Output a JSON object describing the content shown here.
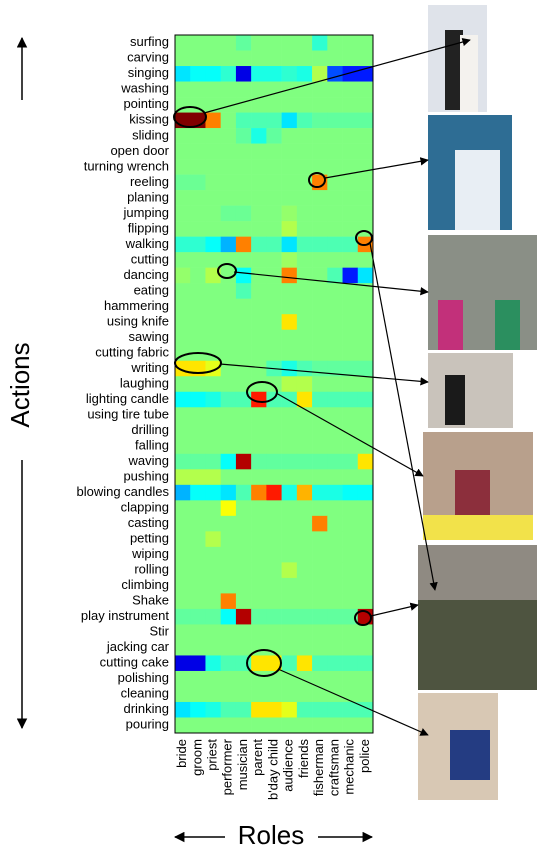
{
  "chart_data": {
    "type": "heatmap",
    "xlabel": "Roles",
    "ylabel": "Actions",
    "x_categories": [
      "bride",
      "groom",
      "priest",
      "performer",
      "musician",
      "parent",
      "b'day child",
      "audience",
      "friends",
      "fisherman",
      "craftsman",
      "mechanic",
      "police"
    ],
    "y_categories": [
      "surfing",
      "carving",
      "singing",
      "washing",
      "pointing",
      "kissing",
      "sliding",
      "open door",
      "turning wrench",
      "reeling",
      "planing",
      "jumping",
      "flipping",
      "walking",
      "cutting",
      "dancing",
      "eating",
      "hammering",
      "using knife",
      "sawing",
      "cutting fabric",
      "writing",
      "laughing",
      "lighting candle",
      "using tire tube",
      "drilling",
      "falling",
      "waving",
      "pushing",
      "blowing candles",
      "clapping",
      "casting",
      "petting",
      "wiping",
      "rolling",
      "climbing",
      "Shake",
      "play instrument",
      "Stir",
      "jacking car",
      "cutting cake",
      "polishing",
      "cleaning",
      "drinking",
      "pouring"
    ],
    "zlim": [
      0,
      1
    ],
    "colormap": "jet",
    "values": [
      [
        0.5,
        0.5,
        0.5,
        0.5,
        0.47,
        0.5,
        0.5,
        0.5,
        0.5,
        0.42,
        0.5,
        0.5,
        0.5
      ],
      [
        0.5,
        0.5,
        0.5,
        0.5,
        0.5,
        0.5,
        0.5,
        0.5,
        0.5,
        0.5,
        0.5,
        0.5,
        0.5
      ],
      [
        0.35,
        0.38,
        0.38,
        0.42,
        0.1,
        0.4,
        0.4,
        0.42,
        0.4,
        0.55,
        0.2,
        0.15,
        0.15
      ],
      [
        0.5,
        0.5,
        0.5,
        0.5,
        0.5,
        0.5,
        0.5,
        0.5,
        0.5,
        0.5,
        0.5,
        0.5,
        0.5
      ],
      [
        0.5,
        0.5,
        0.5,
        0.5,
        0.5,
        0.5,
        0.5,
        0.5,
        0.5,
        0.5,
        0.5,
        0.5,
        0.5
      ],
      [
        1.0,
        1.0,
        0.75,
        0.5,
        0.45,
        0.45,
        0.45,
        0.35,
        0.45,
        0.47,
        0.47,
        0.47,
        0.47
      ],
      [
        0.5,
        0.5,
        0.5,
        0.5,
        0.47,
        0.4,
        0.47,
        0.5,
        0.5,
        0.5,
        0.5,
        0.5,
        0.5
      ],
      [
        0.5,
        0.5,
        0.5,
        0.5,
        0.5,
        0.5,
        0.5,
        0.5,
        0.5,
        0.5,
        0.5,
        0.5,
        0.5
      ],
      [
        0.5,
        0.5,
        0.5,
        0.5,
        0.5,
        0.5,
        0.5,
        0.5,
        0.5,
        0.5,
        0.5,
        0.5,
        0.5
      ],
      [
        0.48,
        0.48,
        0.5,
        0.5,
        0.5,
        0.5,
        0.5,
        0.5,
        0.5,
        0.75,
        0.5,
        0.5,
        0.5
      ],
      [
        0.5,
        0.5,
        0.5,
        0.5,
        0.5,
        0.5,
        0.5,
        0.5,
        0.5,
        0.5,
        0.5,
        0.5,
        0.5
      ],
      [
        0.5,
        0.5,
        0.5,
        0.48,
        0.48,
        0.5,
        0.5,
        0.52,
        0.5,
        0.5,
        0.5,
        0.5,
        0.5
      ],
      [
        0.5,
        0.5,
        0.5,
        0.5,
        0.5,
        0.5,
        0.5,
        0.55,
        0.5,
        0.5,
        0.5,
        0.5,
        0.5
      ],
      [
        0.42,
        0.42,
        0.38,
        0.3,
        0.75,
        0.45,
        0.45,
        0.35,
        0.45,
        0.45,
        0.45,
        0.45,
        0.75
      ],
      [
        0.5,
        0.5,
        0.5,
        0.5,
        0.5,
        0.5,
        0.5,
        0.53,
        0.5,
        0.5,
        0.5,
        0.5,
        0.5
      ],
      [
        0.52,
        0.5,
        0.55,
        0.5,
        0.38,
        0.5,
        0.5,
        0.75,
        0.5,
        0.5,
        0.45,
        0.15,
        0.35
      ],
      [
        0.5,
        0.5,
        0.5,
        0.5,
        0.45,
        0.5,
        0.5,
        0.5,
        0.5,
        0.5,
        0.5,
        0.5,
        0.5
      ],
      [
        0.5,
        0.5,
        0.5,
        0.5,
        0.5,
        0.5,
        0.5,
        0.5,
        0.5,
        0.5,
        0.5,
        0.5,
        0.5
      ],
      [
        0.5,
        0.5,
        0.5,
        0.5,
        0.5,
        0.5,
        0.5,
        0.65,
        0.5,
        0.5,
        0.5,
        0.5,
        0.5
      ],
      [
        0.5,
        0.5,
        0.5,
        0.5,
        0.5,
        0.5,
        0.5,
        0.5,
        0.5,
        0.5,
        0.5,
        0.5,
        0.5
      ],
      [
        0.5,
        0.5,
        0.5,
        0.5,
        0.5,
        0.5,
        0.5,
        0.5,
        0.5,
        0.5,
        0.5,
        0.5,
        0.5
      ],
      [
        0.65,
        0.65,
        0.6,
        0.5,
        0.5,
        0.5,
        0.45,
        0.4,
        0.45,
        0.47,
        0.47,
        0.47,
        0.47
      ],
      [
        0.5,
        0.5,
        0.5,
        0.5,
        0.5,
        0.5,
        0.5,
        0.55,
        0.55,
        0.5,
        0.5,
        0.5,
        0.5
      ],
      [
        0.38,
        0.38,
        0.4,
        0.45,
        0.45,
        0.85,
        0.45,
        0.45,
        0.65,
        0.45,
        0.45,
        0.45,
        0.45
      ],
      [
        0.5,
        0.5,
        0.5,
        0.5,
        0.5,
        0.5,
        0.5,
        0.5,
        0.5,
        0.5,
        0.5,
        0.5,
        0.5
      ],
      [
        0.5,
        0.5,
        0.5,
        0.5,
        0.5,
        0.5,
        0.5,
        0.5,
        0.5,
        0.5,
        0.5,
        0.5,
        0.5
      ],
      [
        0.5,
        0.5,
        0.5,
        0.5,
        0.5,
        0.5,
        0.5,
        0.5,
        0.5,
        0.5,
        0.5,
        0.5,
        0.5
      ],
      [
        0.47,
        0.47,
        0.47,
        0.38,
        0.95,
        0.47,
        0.47,
        0.47,
        0.47,
        0.47,
        0.47,
        0.47,
        0.65
      ],
      [
        0.55,
        0.55,
        0.55,
        0.5,
        0.5,
        0.5,
        0.5,
        0.5,
        0.5,
        0.5,
        0.5,
        0.5,
        0.5
      ],
      [
        0.3,
        0.38,
        0.38,
        0.35,
        0.45,
        0.75,
        0.85,
        0.4,
        0.7,
        0.4,
        0.4,
        0.38,
        0.38
      ],
      [
        0.5,
        0.5,
        0.5,
        0.62,
        0.5,
        0.5,
        0.5,
        0.5,
        0.5,
        0.5,
        0.5,
        0.5,
        0.5
      ],
      [
        0.5,
        0.5,
        0.5,
        0.5,
        0.5,
        0.5,
        0.5,
        0.5,
        0.5,
        0.75,
        0.5,
        0.5,
        0.5
      ],
      [
        0.5,
        0.5,
        0.55,
        0.5,
        0.5,
        0.5,
        0.5,
        0.5,
        0.5,
        0.5,
        0.5,
        0.5,
        0.5
      ],
      [
        0.5,
        0.5,
        0.5,
        0.5,
        0.5,
        0.5,
        0.5,
        0.5,
        0.5,
        0.5,
        0.5,
        0.5,
        0.5
      ],
      [
        0.5,
        0.5,
        0.5,
        0.5,
        0.5,
        0.5,
        0.5,
        0.55,
        0.5,
        0.5,
        0.5,
        0.5,
        0.5
      ],
      [
        0.5,
        0.5,
        0.5,
        0.5,
        0.5,
        0.5,
        0.5,
        0.5,
        0.5,
        0.5,
        0.5,
        0.5,
        0.5
      ],
      [
        0.5,
        0.5,
        0.5,
        0.75,
        0.5,
        0.5,
        0.5,
        0.5,
        0.5,
        0.5,
        0.5,
        0.5,
        0.5
      ],
      [
        0.47,
        0.47,
        0.47,
        0.38,
        0.95,
        0.47,
        0.47,
        0.47,
        0.47,
        0.47,
        0.47,
        0.47,
        0.95
      ],
      [
        0.5,
        0.5,
        0.5,
        0.5,
        0.5,
        0.5,
        0.5,
        0.5,
        0.5,
        0.5,
        0.5,
        0.5,
        0.5
      ],
      [
        0.5,
        0.5,
        0.5,
        0.5,
        0.5,
        0.5,
        0.5,
        0.5,
        0.5,
        0.5,
        0.5,
        0.5,
        0.5
      ],
      [
        0.1,
        0.1,
        0.4,
        0.45,
        0.45,
        0.65,
        0.65,
        0.45,
        0.65,
        0.45,
        0.45,
        0.45,
        0.45
      ],
      [
        0.5,
        0.5,
        0.5,
        0.5,
        0.5,
        0.5,
        0.5,
        0.5,
        0.5,
        0.5,
        0.5,
        0.5,
        0.5
      ],
      [
        0.5,
        0.5,
        0.5,
        0.5,
        0.5,
        0.5,
        0.5,
        0.5,
        0.5,
        0.5,
        0.5,
        0.5,
        0.5
      ],
      [
        0.35,
        0.38,
        0.4,
        0.45,
        0.45,
        0.65,
        0.65,
        0.6,
        0.45,
        0.45,
        0.45,
        0.45,
        0.45
      ],
      [
        0.5,
        0.5,
        0.5,
        0.5,
        0.5,
        0.5,
        0.5,
        0.5,
        0.5,
        0.5,
        0.5,
        0.5,
        0.5
      ]
    ]
  }
}
